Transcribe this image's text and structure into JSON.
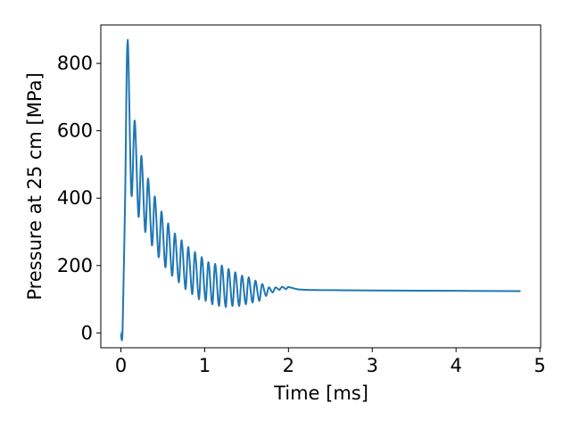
{
  "chart_data": {
    "type": "line",
    "xlabel": "Time [ms]",
    "ylabel": "Pressure at 25 cm [MPa]",
    "series": [
      {
        "color": "#1f77b4",
        "x": [
          0,
          0.02,
          0.05,
          0.08,
          0.125,
          0.165,
          0.21,
          0.245,
          0.29,
          0.325,
          0.37,
          0.405,
          0.45,
          0.485,
          0.53,
          0.565,
          0.61,
          0.645,
          0.69,
          0.725,
          0.77,
          0.805,
          0.85,
          0.885,
          0.93,
          0.965,
          1.01,
          1.045,
          1.09,
          1.125,
          1.17,
          1.205,
          1.25,
          1.285,
          1.33,
          1.365,
          1.41,
          1.445,
          1.49,
          1.525,
          1.57,
          1.605,
          1.65,
          1.685,
          1.73,
          1.765,
          1.81,
          1.845,
          1.89,
          1.925,
          1.97,
          2.0,
          2.1,
          2.2,
          2.5,
          3,
          4,
          4.77
        ],
        "values": [
          0,
          10,
          400,
          870,
          410,
          630,
          345,
          525,
          300,
          458,
          260,
          405,
          225,
          360,
          195,
          325,
          170,
          295,
          150,
          275,
          130,
          255,
          115,
          240,
          100,
          225,
          95,
          210,
          85,
          205,
          80,
          200,
          77,
          190,
          80,
          180,
          80,
          170,
          85,
          165,
          90,
          155,
          95,
          145,
          110,
          135,
          120,
          135,
          128,
          137,
          130,
          136,
          130,
          128,
          127,
          126,
          125,
          124
        ]
      }
    ],
    "xlim": [
      -0.24,
      5.01
    ],
    "xticks": [
      0,
      1,
      2,
      3,
      4,
      5
    ],
    "ylim": [
      -44,
      914
    ],
    "yticks": [
      0,
      200,
      400,
      600,
      800
    ]
  }
}
